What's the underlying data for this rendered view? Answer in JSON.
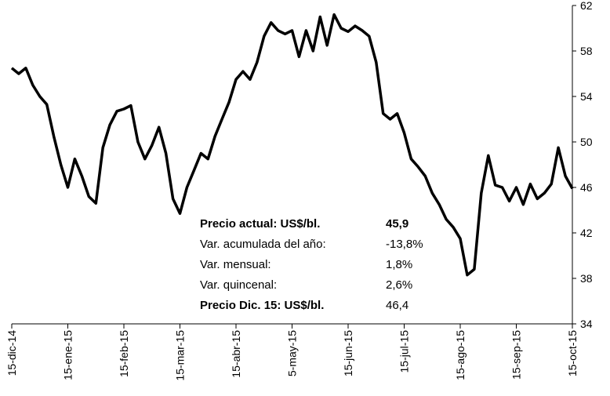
{
  "chart_data": {
    "type": "line",
    "categories": [
      "15-dic-14",
      null,
      null,
      null,
      null,
      null,
      null,
      null,
      "15-ene-15",
      null,
      null,
      null,
      null,
      null,
      null,
      null,
      "15-feb-15",
      null,
      null,
      null,
      null,
      null,
      null,
      null,
      "15-mar-15",
      null,
      null,
      null,
      null,
      null,
      null,
      null,
      "15-abr-15",
      null,
      null,
      null,
      null,
      null,
      null,
      null,
      "5-may-15",
      null,
      null,
      null,
      null,
      null,
      null,
      null,
      "15-jun-15",
      null,
      null,
      null,
      null,
      null,
      null,
      null,
      "15-jul-15",
      null,
      null,
      null,
      null,
      null,
      null,
      null,
      "15-ago-15",
      null,
      null,
      null,
      null,
      null,
      null,
      null,
      "15-sep-15",
      null,
      null,
      null,
      null,
      null,
      null,
      null,
      "15-oct-15"
    ],
    "series": [
      {
        "color": "#000000",
        "values": [
          56.5,
          56,
          56.5,
          55,
          54,
          53.3,
          50.5,
          48,
          46,
          48.5,
          47,
          45.2,
          44.6,
          49.5,
          51.5,
          52.7,
          52.9,
          53.2,
          50,
          48.5,
          49.7,
          51.3,
          49,
          45,
          43.7,
          46,
          47.5,
          49,
          48.5,
          50.5,
          52,
          53.5,
          55.5,
          56.2,
          55.5,
          57,
          59.3,
          60.5,
          59.8,
          59.5,
          59.8,
          57.5,
          59.8,
          58,
          61,
          58.5,
          61.2,
          60,
          59.7,
          60.2,
          59.8,
          59.3,
          57,
          52.5,
          52,
          52.5,
          50.8,
          48.5,
          47.8,
          47,
          45.5,
          44.5,
          43.2,
          42.5,
          41.5,
          38.3,
          38.8,
          45.5,
          48.8,
          46.2,
          46,
          44.8,
          46,
          44.5,
          46.3,
          45,
          45.5,
          46.3,
          49.5,
          47,
          45.9
        ]
      }
    ],
    "ylim": [
      34,
      62
    ],
    "yticks": [
      34,
      38,
      42,
      46,
      50,
      54,
      58,
      62
    ],
    "annotations": [
      [
        "Precio actual: US$/bl.",
        "45,9"
      ],
      [
        "Var. acumulada del año:",
        "-13,8%"
      ],
      [
        "Var. mensual:",
        "1,8%"
      ],
      [
        "Var. quincenal:",
        "2,6%"
      ],
      [
        "Precio Dic. 15:  US$/bl.",
        "46,4"
      ]
    ]
  }
}
